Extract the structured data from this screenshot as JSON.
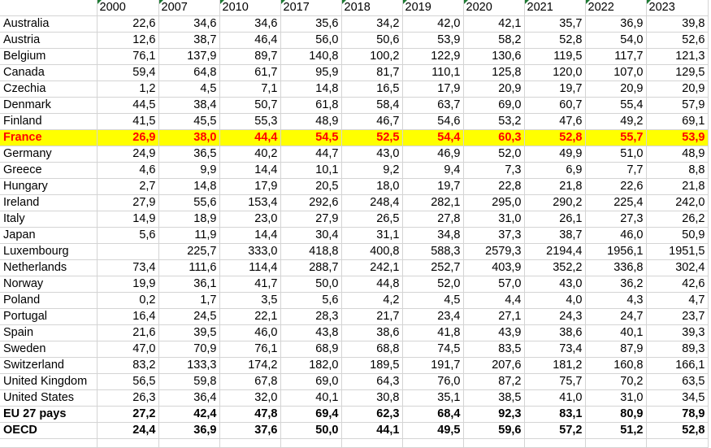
{
  "columns": [
    "2000",
    "2007",
    "2010",
    "2017",
    "2018",
    "2019",
    "2020",
    "2021",
    "2022",
    "2023"
  ],
  "rows": [
    {
      "country": "Australia",
      "values": [
        "22,6",
        "34,6",
        "34,6",
        "35,6",
        "34,2",
        "42,0",
        "42,1",
        "35,7",
        "36,9",
        "39,8"
      ]
    },
    {
      "country": "Austria",
      "values": [
        "12,6",
        "38,7",
        "46,4",
        "56,0",
        "50,6",
        "53,9",
        "58,2",
        "52,8",
        "54,0",
        "52,6"
      ]
    },
    {
      "country": "Belgium",
      "values": [
        "76,1",
        "137,9",
        "89,7",
        "140,8",
        "100,2",
        "122,9",
        "130,6",
        "119,5",
        "117,7",
        "121,3"
      ]
    },
    {
      "country": "Canada",
      "values": [
        "59,4",
        "64,8",
        "61,7",
        "95,9",
        "81,7",
        "110,1",
        "125,8",
        "120,0",
        "107,0",
        "129,5"
      ]
    },
    {
      "country": "Czechia",
      "values": [
        "1,2",
        "4,5",
        "7,1",
        "14,8",
        "16,5",
        "17,9",
        "20,9",
        "19,7",
        "20,9",
        "20,9"
      ]
    },
    {
      "country": "Denmark",
      "values": [
        "44,5",
        "38,4",
        "50,7",
        "61,8",
        "58,4",
        "63,7",
        "69,0",
        "60,7",
        "55,4",
        "57,9"
      ]
    },
    {
      "country": "Finland",
      "values": [
        "41,5",
        "45,5",
        "55,3",
        "48,9",
        "46,7",
        "54,6",
        "53,2",
        "47,6",
        "49,2",
        "69,1"
      ]
    },
    {
      "country": "France",
      "values": [
        "26,9",
        "38,0",
        "44,4",
        "54,5",
        "52,5",
        "54,4",
        "60,3",
        "52,8",
        "55,7",
        "53,9"
      ],
      "highlight": true
    },
    {
      "country": "Germany",
      "values": [
        "24,9",
        "36,5",
        "40,2",
        "44,7",
        "43,0",
        "46,9",
        "52,0",
        "49,9",
        "51,0",
        "48,9"
      ]
    },
    {
      "country": "Greece",
      "values": [
        "4,6",
        "9,9",
        "14,4",
        "10,1",
        "9,2",
        "9,4",
        "7,3",
        "6,9",
        "7,7",
        "8,8"
      ]
    },
    {
      "country": "Hungary",
      "values": [
        "2,7",
        "14,8",
        "17,9",
        "20,5",
        "18,0",
        "19,7",
        "22,8",
        "21,8",
        "22,6",
        "21,8"
      ]
    },
    {
      "country": "Ireland",
      "values": [
        "27,9",
        "55,6",
        "153,4",
        "292,6",
        "248,4",
        "282,1",
        "295,0",
        "290,2",
        "225,4",
        "242,0"
      ]
    },
    {
      "country": "Italy",
      "values": [
        "14,9",
        "18,9",
        "23,0",
        "27,9",
        "26,5",
        "27,8",
        "31,0",
        "26,1",
        "27,3",
        "26,2"
      ]
    },
    {
      "country": "Japan",
      "values": [
        "5,6",
        "11,9",
        "14,4",
        "30,4",
        "31,1",
        "34,8",
        "37,3",
        "38,7",
        "46,0",
        "50,9"
      ]
    },
    {
      "country": "Luxembourg",
      "values": [
        "",
        "225,7",
        "333,0",
        "418,8",
        "400,8",
        "588,3",
        "2579,3",
        "2194,4",
        "1956,1",
        "1951,5"
      ]
    },
    {
      "country": "Netherlands",
      "values": [
        "73,4",
        "111,6",
        "114,4",
        "288,7",
        "242,1",
        "252,7",
        "403,9",
        "352,2",
        "336,8",
        "302,4"
      ]
    },
    {
      "country": "Norway",
      "values": [
        "19,9",
        "36,1",
        "41,7",
        "50,0",
        "44,8",
        "52,0",
        "57,0",
        "43,0",
        "36,2",
        "42,6"
      ]
    },
    {
      "country": "Poland",
      "values": [
        "0,2",
        "1,7",
        "3,5",
        "5,6",
        "4,2",
        "4,5",
        "4,4",
        "4,0",
        "4,3",
        "4,7"
      ]
    },
    {
      "country": "Portugal",
      "values": [
        "16,4",
        "24,5",
        "22,1",
        "28,3",
        "21,7",
        "23,4",
        "27,1",
        "24,3",
        "24,7",
        "23,7"
      ]
    },
    {
      "country": "Spain",
      "values": [
        "21,6",
        "39,5",
        "46,0",
        "43,8",
        "38,6",
        "41,8",
        "43,9",
        "38,6",
        "40,1",
        "39,3"
      ]
    },
    {
      "country": "Sweden",
      "values": [
        "47,0",
        "70,9",
        "76,1",
        "68,9",
        "68,8",
        "74,5",
        "83,5",
        "73,4",
        "87,9",
        "89,3"
      ]
    },
    {
      "country": "Switzerland",
      "values": [
        "83,2",
        "133,3",
        "174,2",
        "182,0",
        "189,5",
        "191,7",
        "207,6",
        "181,2",
        "160,8",
        "166,1"
      ]
    },
    {
      "country": "United Kingdom",
      "values": [
        "56,5",
        "59,8",
        "67,8",
        "69,0",
        "64,3",
        "76,0",
        "87,2",
        "75,7",
        "70,2",
        "63,5"
      ]
    },
    {
      "country": "United States",
      "values": [
        "26,3",
        "36,4",
        "32,0",
        "40,1",
        "30,8",
        "35,1",
        "38,5",
        "41,0",
        "31,0",
        "34,5"
      ]
    },
    {
      "country": "EU 27 pays",
      "values": [
        "27,2",
        "42,4",
        "47,8",
        "69,4",
        "62,3",
        "68,4",
        "92,3",
        "83,1",
        "80,9",
        "78,9"
      ],
      "bold": true
    },
    {
      "country": "OECD",
      "values": [
        "24,4",
        "36,9",
        "37,6",
        "50,0",
        "44,1",
        "49,5",
        "59,6",
        "57,2",
        "51,2",
        "52,8"
      ],
      "bold": true
    }
  ],
  "colors": {
    "highlight_bg": "#ffff00",
    "highlight_text": "#ff0000",
    "gridline": "#d4d4d4",
    "error_marker": "#1e7b34"
  }
}
